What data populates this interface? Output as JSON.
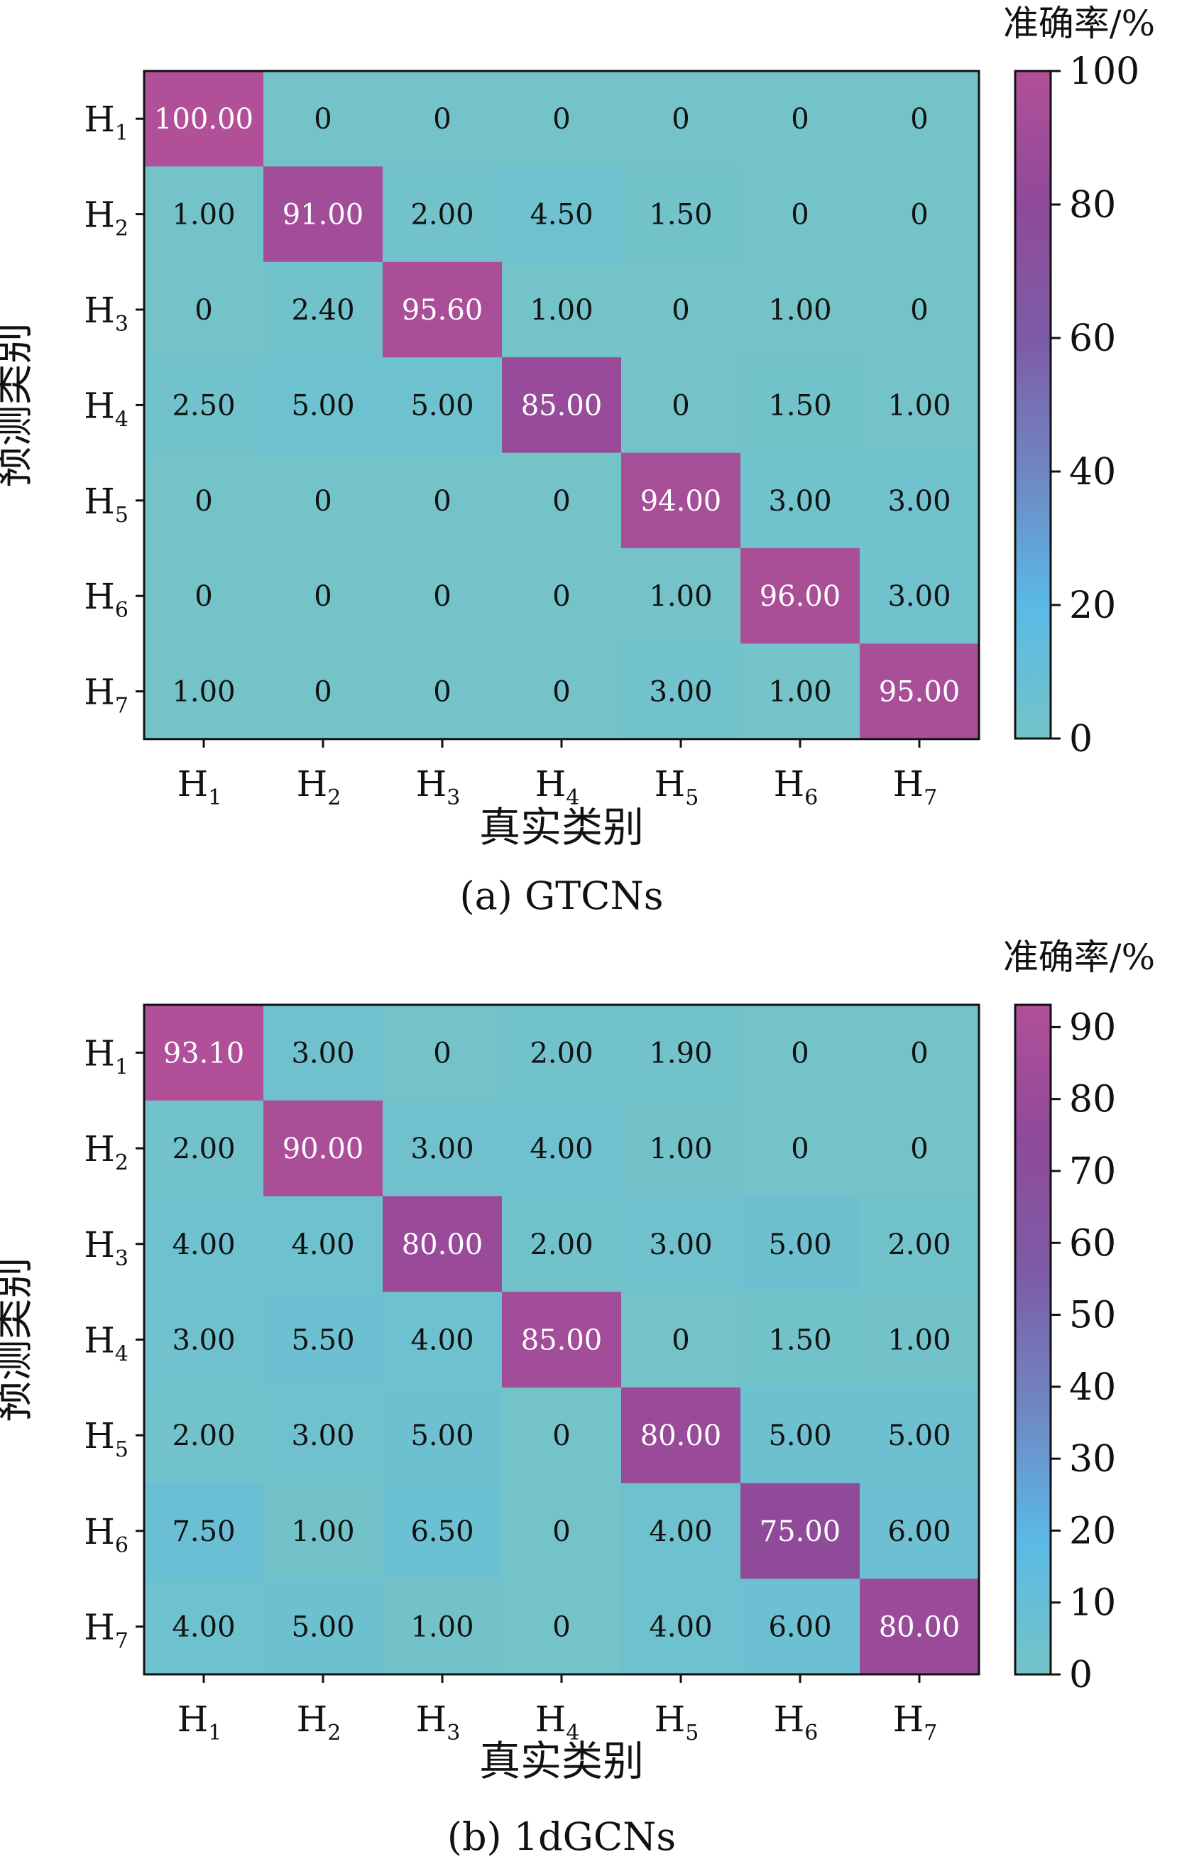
{
  "chart_data": [
    {
      "type": "heatmap",
      "caption": "(a)  GTCNs",
      "xlabel": "真实类别",
      "ylabel": "预测类别",
      "colorbar_label": "准确率/%",
      "x_categories": [
        {
          "base": "H",
          "sub": "1"
        },
        {
          "base": "H",
          "sub": "2"
        },
        {
          "base": "H",
          "sub": "3"
        },
        {
          "base": "H",
          "sub": "4"
        },
        {
          "base": "H",
          "sub": "5"
        },
        {
          "base": "H",
          "sub": "6"
        },
        {
          "base": "H",
          "sub": "7"
        }
      ],
      "y_categories": [
        {
          "base": "H",
          "sub": "1"
        },
        {
          "base": "H",
          "sub": "2"
        },
        {
          "base": "H",
          "sub": "3"
        },
        {
          "base": "H",
          "sub": "4"
        },
        {
          "base": "H",
          "sub": "5"
        },
        {
          "base": "H",
          "sub": "6"
        },
        {
          "base": "H",
          "sub": "7"
        }
      ],
      "values": [
        [
          "100.00",
          "0",
          "0",
          "0",
          "0",
          "0",
          "0"
        ],
        [
          "1.00",
          "91.00",
          "2.00",
          "4.50",
          "1.50",
          "0",
          "0"
        ],
        [
          "0",
          "2.40",
          "95.60",
          "1.00",
          "0",
          "1.00",
          "0"
        ],
        [
          "2.50",
          "5.00",
          "5.00",
          "85.00",
          "0",
          "1.50",
          "1.00"
        ],
        [
          "0",
          "0",
          "0",
          "0",
          "94.00",
          "3.00",
          "3.00"
        ],
        [
          "0",
          "0",
          "0",
          "0",
          "1.00",
          "96.00",
          "3.00"
        ],
        [
          "1.00",
          "0",
          "0",
          "0",
          "3.00",
          "1.00",
          "95.00"
        ]
      ],
      "colorbar_range": [
        0,
        100
      ],
      "colorbar_ticks": [
        "0",
        "20",
        "40",
        "60",
        "80",
        "100"
      ],
      "colormap": [
        "#74c3c8",
        "#5ab9e5",
        "#6f86c3",
        "#7d5ba6",
        "#8f4a9a",
        "#b14f98"
      ]
    },
    {
      "type": "heatmap",
      "caption": "(b)  1dGCNs",
      "xlabel": "真实类别",
      "ylabel": "预测类别",
      "colorbar_label": "准确率/%",
      "x_categories": [
        {
          "base": "H",
          "sub": "1"
        },
        {
          "base": "H",
          "sub": "2"
        },
        {
          "base": "H",
          "sub": "3"
        },
        {
          "base": "H",
          "sub": "4"
        },
        {
          "base": "H",
          "sub": "5"
        },
        {
          "base": "H",
          "sub": "6"
        },
        {
          "base": "H",
          "sub": "7"
        }
      ],
      "y_categories": [
        {
          "base": "H",
          "sub": "1"
        },
        {
          "base": "H",
          "sub": "2"
        },
        {
          "base": "H",
          "sub": "3"
        },
        {
          "base": "H",
          "sub": "4"
        },
        {
          "base": "H",
          "sub": "5"
        },
        {
          "base": "H",
          "sub": "6"
        },
        {
          "base": "H",
          "sub": "7"
        }
      ],
      "values": [
        [
          "93.10",
          "3.00",
          "0",
          "2.00",
          "1.90",
          "0",
          "0"
        ],
        [
          "2.00",
          "90.00",
          "3.00",
          "4.00",
          "1.00",
          "0",
          "0"
        ],
        [
          "4.00",
          "4.00",
          "80.00",
          "2.00",
          "3.00",
          "5.00",
          "2.00"
        ],
        [
          "3.00",
          "5.50",
          "4.00",
          "85.00",
          "0",
          "1.50",
          "1.00"
        ],
        [
          "2.00",
          "3.00",
          "5.00",
          "0",
          "80.00",
          "5.00",
          "5.00"
        ],
        [
          "7.50",
          "1.00",
          "6.50",
          "0",
          "4.00",
          "75.00",
          "6.00"
        ],
        [
          "4.00",
          "5.00",
          "1.00",
          "0",
          "4.00",
          "6.00",
          "80.00"
        ]
      ],
      "colorbar_range": [
        0,
        93.1
      ],
      "colorbar_ticks": [
        "0",
        "10",
        "20",
        "30",
        "40",
        "50",
        "60",
        "70",
        "80",
        "90"
      ],
      "colormap": [
        "#74c3c8",
        "#5ab9e5",
        "#6f86c3",
        "#7d5ba6",
        "#8f4a9a",
        "#b14f98"
      ]
    }
  ]
}
